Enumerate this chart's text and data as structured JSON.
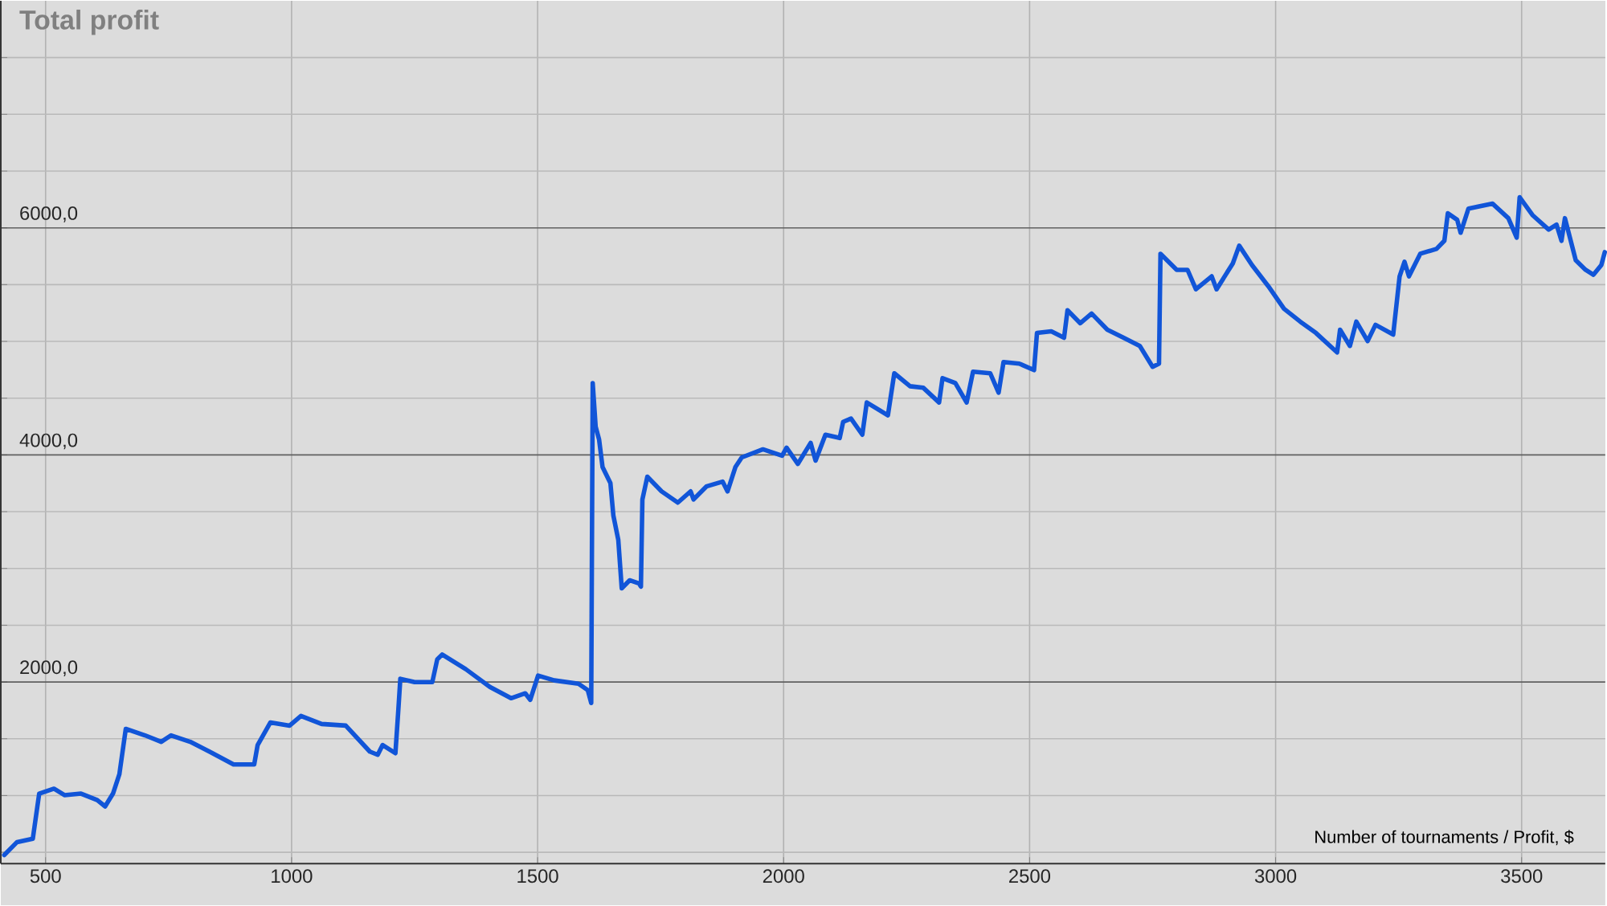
{
  "chart_data": {
    "type": "line",
    "title": "Total profit",
    "xlabel": "Number of tournaments / Profit, $",
    "x": [
      416,
      442,
      474,
      487,
      517,
      539,
      572,
      605,
      621,
      637,
      650,
      663,
      702,
      735,
      755,
      794,
      833,
      882,
      924,
      931,
      957,
      996,
      1019,
      1061,
      1110,
      1159,
      1175,
      1185,
      1211,
      1217,
      1221,
      1250,
      1286,
      1296,
      1306,
      1354,
      1403,
      1446,
      1475,
      1485,
      1501,
      1534,
      1583,
      1602,
      1609,
      1612,
      1618,
      1625,
      1632,
      1648,
      1654,
      1664,
      1671,
      1687,
      1706,
      1710,
      1713,
      1723,
      1752,
      1785,
      1811,
      1817,
      1843,
      1876,
      1886,
      1902,
      1915,
      1958,
      1997,
      2006,
      2029,
      2055,
      2065,
      2085,
      2114,
      2121,
      2137,
      2160,
      2169,
      2212,
      2225,
      2257,
      2284,
      2316,
      2323,
      2349,
      2372,
      2385,
      2420,
      2437,
      2447,
      2479,
      2509,
      2515,
      2544,
      2570,
      2577,
      2603,
      2626,
      2658,
      2691,
      2724,
      2750,
      2763,
      2766,
      2799,
      2821,
      2838,
      2870,
      2880,
      2913,
      2926,
      2952,
      2985,
      3017,
      3050,
      3082,
      3125,
      3131,
      3151,
      3164,
      3187,
      3203,
      3239,
      3252,
      3262,
      3271,
      3294,
      3327,
      3343,
      3350,
      3369,
      3376,
      3392,
      3441,
      3473,
      3490,
      3496,
      3522,
      3555,
      3571,
      3581,
      3588,
      3610,
      3630,
      3646,
      3662,
      3669
    ],
    "series": [
      {
        "color": "#1155d8",
        "values": [
          476,
          590,
          619,
          1017,
          1060,
          1003,
          1017,
          960,
          904,
          1017,
          1188,
          1587,
          1530,
          1473,
          1530,
          1473,
          1387,
          1274,
          1274,
          1445,
          1644,
          1616,
          1701,
          1630,
          1616,
          1387,
          1359,
          1445,
          1373,
          1758,
          2028,
          1999,
          1999,
          2199,
          2242,
          2113,
          1957,
          1857,
          1900,
          1843,
          2057,
          2014,
          1985,
          1928,
          1815,
          4633,
          4249,
          4135,
          3893,
          3751,
          3466,
          3252,
          2825,
          2896,
          2868,
          2840,
          3608,
          3808,
          3679,
          3580,
          3679,
          3608,
          3722,
          3765,
          3679,
          3893,
          3978,
          4049,
          3993,
          4064,
          3921,
          4106,
          3950,
          4178,
          4149,
          4291,
          4320,
          4178,
          4462,
          4349,
          4719,
          4605,
          4591,
          4462,
          4676,
          4633,
          4462,
          4733,
          4719,
          4548,
          4818,
          4804,
          4747,
          5075,
          5089,
          5032,
          5274,
          5160,
          5245,
          5103,
          5032,
          4960,
          4776,
          4804,
          5772,
          5630,
          5630,
          5459,
          5573,
          5459,
          5687,
          5843,
          5672,
          5487,
          5288,
          5174,
          5074,
          4903,
          5103,
          4960,
          5174,
          5003,
          5146,
          5060,
          5573,
          5701,
          5573,
          5772,
          5815,
          5886,
          6128,
          6071,
          5957,
          6170,
          6213,
          6085,
          5914,
          6270,
          6113,
          5985,
          6028,
          5886,
          6085,
          5715,
          5630,
          5587,
          5672,
          5786
        ]
      }
    ],
    "xlim": [
      409,
      3670
    ],
    "ylim": [
      400,
      8000
    ],
    "xticks": [
      500,
      1000,
      1500,
      2000,
      2500,
      3000,
      3500
    ],
    "yticks": [
      {
        "value": 500,
        "label": null
      },
      {
        "value": 1000,
        "label": null
      },
      {
        "value": 1500,
        "label": null
      },
      {
        "value": 2000,
        "label": "2000,0"
      },
      {
        "value": 2500,
        "label": null
      },
      {
        "value": 3000,
        "label": null
      },
      {
        "value": 3500,
        "label": null
      },
      {
        "value": 4000,
        "label": "4000,0"
      },
      {
        "value": 4500,
        "label": null
      },
      {
        "value": 5000,
        "label": null
      },
      {
        "value": 5500,
        "label": null
      },
      {
        "value": 6000,
        "label": "6000,0"
      },
      {
        "value": 6500,
        "label": null
      },
      {
        "value": 7000,
        "label": null
      },
      {
        "value": 7500,
        "label": null
      }
    ],
    "grid": true
  }
}
